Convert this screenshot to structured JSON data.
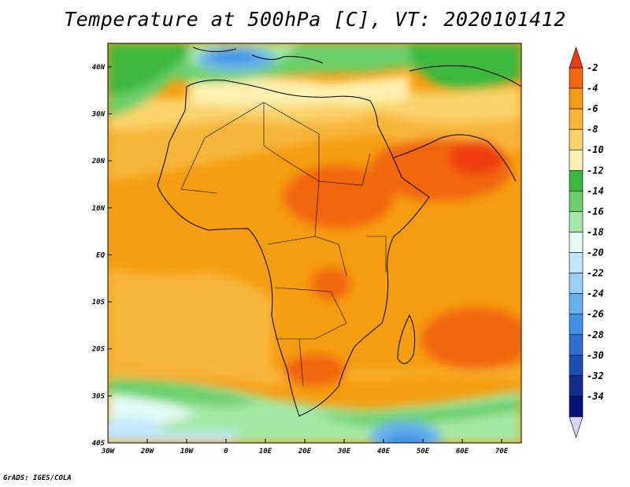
{
  "title": "Temperature at 500hPa [C], VT: 2020101412",
  "credit": "GrADS: IGES/COLA",
  "map": {
    "region": "Africa",
    "lon_range": [
      -30,
      75
    ],
    "lat_range": [
      -40,
      45
    ],
    "lat_labels": [
      "40N",
      "30N",
      "20N",
      "10N",
      "EQ",
      "10S",
      "20S",
      "30S",
      "40S"
    ],
    "lat_values": [
      40,
      30,
      20,
      10,
      0,
      -10,
      -20,
      -30,
      -40
    ],
    "lon_labels": [
      "30W",
      "20W",
      "10W",
      "0",
      "10E",
      "20E",
      "30E",
      "40E",
      "50E",
      "60E",
      "70E"
    ],
    "lon_values": [
      -30,
      -20,
      -10,
      0,
      10,
      20,
      30,
      40,
      50,
      60,
      70
    ]
  },
  "colorbar": {
    "labels": [
      "-2",
      "-4",
      "-6",
      "-8",
      "-10",
      "-12",
      "-14",
      "-16",
      "-18",
      "-20",
      "-22",
      "-24",
      "-26",
      "-28",
      "-30",
      "-32",
      "-34"
    ],
    "colors": [
      "#f03c0c",
      "#f2660e",
      "#f59d10",
      "#f7b63a",
      "#f9d36a",
      "#fdf0b0",
      "#3cb83c",
      "#6acf6a",
      "#a5e8a5",
      "#e3fbf5",
      "#c2e6fa",
      "#9ad0f6",
      "#66b0ee",
      "#3f91e3",
      "#2e6fd0",
      "#1a4fb5",
      "#0f2e8e",
      "#08127a",
      "#d8d8f4"
    ]
  }
}
